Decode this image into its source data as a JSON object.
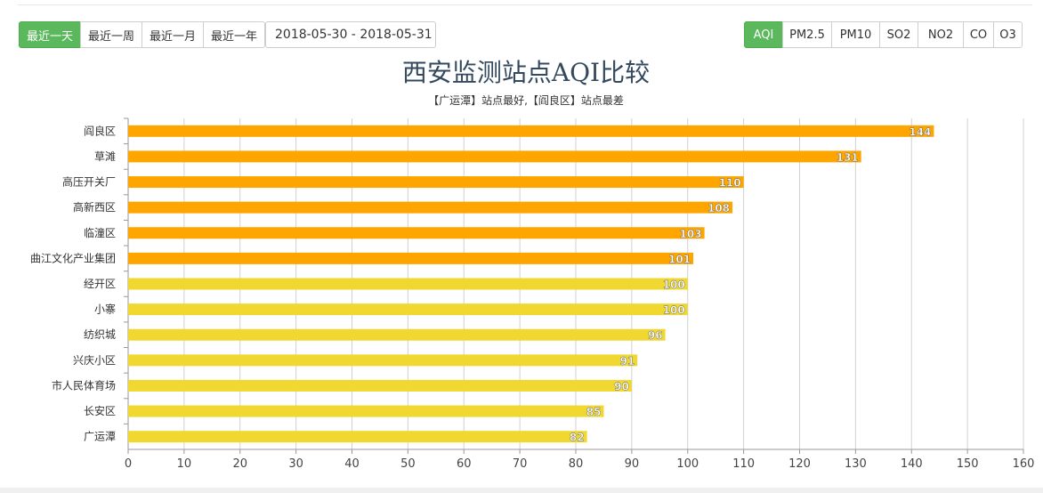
{
  "range_buttons": [
    {
      "label": "最近一天",
      "active": true
    },
    {
      "label": "最近一周",
      "active": false
    },
    {
      "label": "最近一月",
      "active": false
    },
    {
      "label": "最近一年",
      "active": false
    }
  ],
  "date_range": "2018-05-30 - 2018-05-31",
  "pollutant_buttons": [
    {
      "label": "AQI",
      "active": true
    },
    {
      "label": "PM2.5",
      "active": false
    },
    {
      "label": "PM10",
      "active": false
    },
    {
      "label": "SO2",
      "active": false
    },
    {
      "label": "NO2",
      "active": false
    },
    {
      "label": "CO",
      "active": false
    },
    {
      "label": "O3",
      "active": false
    }
  ],
  "colors": {
    "orange": "#fea500",
    "yellow": "#f0d830",
    "active_green": "#5cb85c",
    "grid": "#d0d0d0"
  },
  "chart_data": {
    "type": "bar",
    "orientation": "horizontal",
    "title": "西安监测站点AQI比较",
    "subtitle": "【广运潭】站点最好,【阎良区】站点最差",
    "categories": [
      "阎良区",
      "草滩",
      "高压开关厂",
      "高新西区",
      "临潼区",
      "曲江文化产业集团",
      "经开区",
      "小寨",
      "纺织城",
      "兴庆小区",
      "市人民体育场",
      "长安区",
      "广运潭"
    ],
    "values": [
      144,
      131,
      110,
      108,
      103,
      101,
      100,
      100,
      96,
      91,
      90,
      85,
      82
    ],
    "bar_levels": [
      "orange",
      "orange",
      "orange",
      "orange",
      "orange",
      "orange",
      "yellow",
      "yellow",
      "yellow",
      "yellow",
      "yellow",
      "yellow",
      "yellow"
    ],
    "xlim": [
      0,
      160
    ],
    "xticks": [
      0,
      10,
      20,
      30,
      40,
      50,
      60,
      70,
      80,
      90,
      100,
      110,
      120,
      130,
      140,
      150,
      160
    ],
    "grid": true
  }
}
